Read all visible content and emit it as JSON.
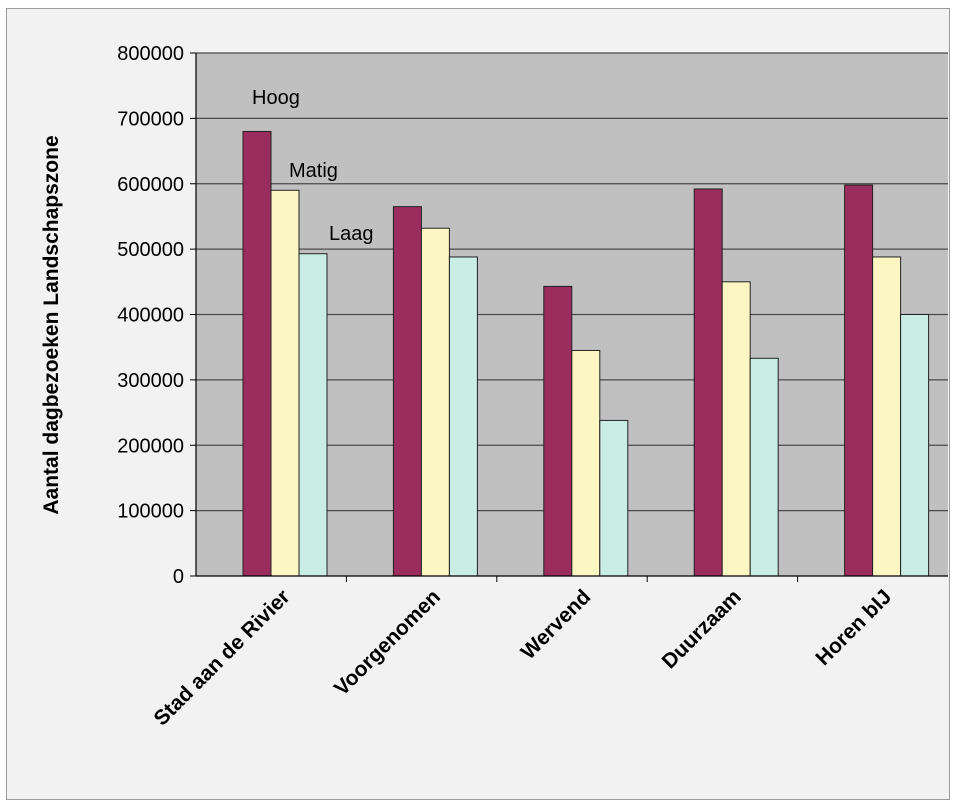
{
  "chart_data": {
    "type": "bar",
    "title": "",
    "xlabel": "",
    "ylabel": "Aantal dagbezoeken Landschapszone",
    "ylim": [
      0,
      800000
    ],
    "yticks": [
      "0",
      "100000",
      "200000",
      "300000",
      "400000",
      "500000",
      "600000",
      "700000",
      "800000"
    ],
    "categories": [
      "Stad aan de Rivier",
      "Voorgenomen",
      "Wervend",
      "Duurzaam",
      "Horen bIJ"
    ],
    "series": [
      {
        "name": "Hoog",
        "color": "#9b2d5e",
        "values": [
          680000,
          565000,
          443000,
          592000,
          598000
        ]
      },
      {
        "name": "Matig",
        "color": "#fbf6c2",
        "values": [
          590000,
          532000,
          345000,
          450000,
          488000
        ]
      },
      {
        "name": "Laag",
        "color": "#c9ece4",
        "values": [
          493000,
          488000,
          238000,
          333000,
          400000
        ]
      }
    ],
    "grid": true,
    "legend": "inside top-left, labels next to bars"
  }
}
